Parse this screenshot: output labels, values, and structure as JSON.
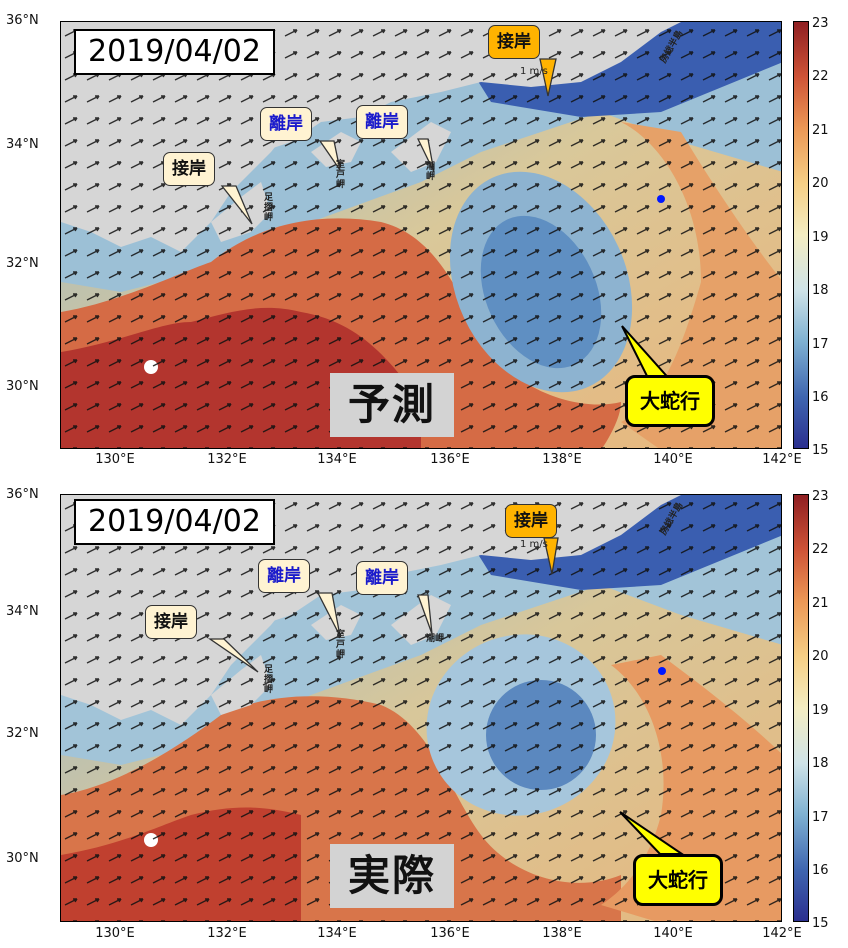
{
  "panels": [
    {
      "date": "2019/04/02",
      "tag": "予測",
      "labels": {
        "setsugan1": "接岸",
        "rigan1": "離岸",
        "rigan2": "離岸",
        "setsugan2": "接岸",
        "daidakou": "大蛇行"
      },
      "scale": "1 m/s"
    },
    {
      "date": "2019/04/02",
      "tag": "実際",
      "labels": {
        "setsugan1": "接岸",
        "rigan1": "離岸",
        "rigan2": "離岸",
        "setsugan2": "接岸",
        "daidakou": "大蛇行"
      },
      "scale": "1 m/s"
    }
  ],
  "axes": {
    "y": [
      "36°N",
      "34°N",
      "32°N",
      "30°N"
    ],
    "x": [
      "130°E",
      "132°E",
      "134°E",
      "136°E",
      "138°E",
      "140°E",
      "142°E"
    ]
  },
  "colorbar": {
    "ticks": [
      "23",
      "22",
      "21",
      "20",
      "19",
      "18",
      "17",
      "16",
      "15"
    ]
  },
  "places": {
    "ashizuri": "足摺岬",
    "muroto": "室戸岬",
    "shionomisaki": "潮岬",
    "boso": "房総半島"
  },
  "colors": {
    "setsugan_box": "#fff3d2",
    "setsugan2_box": "#ffb300",
    "rigan_text": "#1a1acc",
    "meander_box": "#ffff00",
    "land": "#d6d6d6"
  }
}
